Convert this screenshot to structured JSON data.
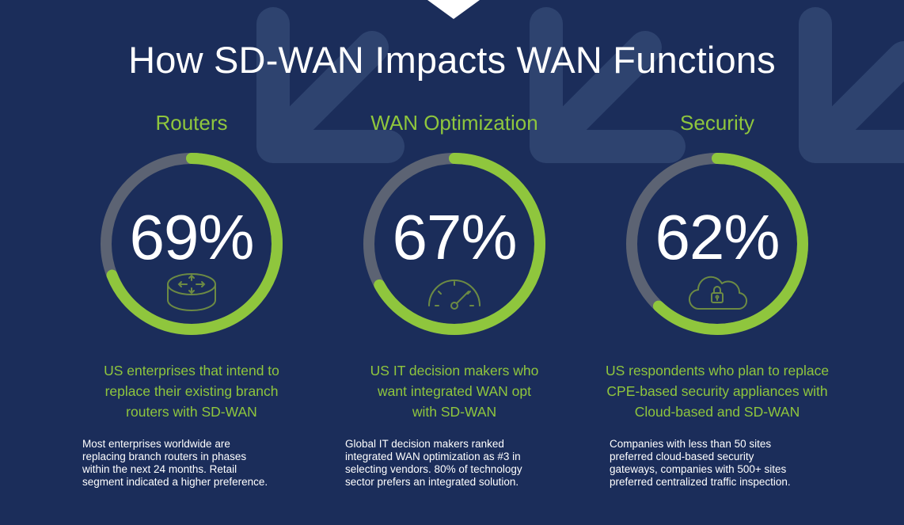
{
  "title": "How SD-WAN Impacts WAN Functions",
  "colors": {
    "background": "#1b2d5a",
    "accent_green": "#8fc63d",
    "ring_track": "#5c6373",
    "watermark": "#2e436f"
  },
  "columns": [
    {
      "heading": "Routers",
      "percent_label": "69%",
      "percent_value": 69,
      "icon": "router-icon",
      "stat_lines": [
        "US enterprises that intend to",
        "replace their existing branch",
        "routers with SD-WAN"
      ],
      "note_lines": [
        "Most enterprises worldwide are",
        "replacing branch routers  in phases",
        "within the next 24 months. Retail",
        "segment indicated a higher preference."
      ]
    },
    {
      "heading": "WAN Optimization",
      "percent_label": "67%",
      "percent_value": 67,
      "icon": "speedometer-icon",
      "stat_lines": [
        "US IT decision makers who",
        "want integrated WAN opt",
        "with SD-WAN"
      ],
      "note_lines": [
        "Global IT decision makers ranked",
        "integrated WAN optimization as #3 in",
        "selecting vendors. 80% of technology",
        "sector prefers an integrated solution."
      ]
    },
    {
      "heading": "Security",
      "percent_label": "62%",
      "percent_value": 62,
      "icon": "cloud-lock-icon",
      "stat_lines": [
        "US respondents who plan to replace",
        "CPE-based security appliances with",
        "Cloud-based and SD-WAN"
      ],
      "note_lines": [
        "Companies with less than 50 sites",
        "preferred cloud-based security",
        "gateways, companies with 500+ sites",
        "preferred centralized traffic inspection."
      ]
    }
  ]
}
